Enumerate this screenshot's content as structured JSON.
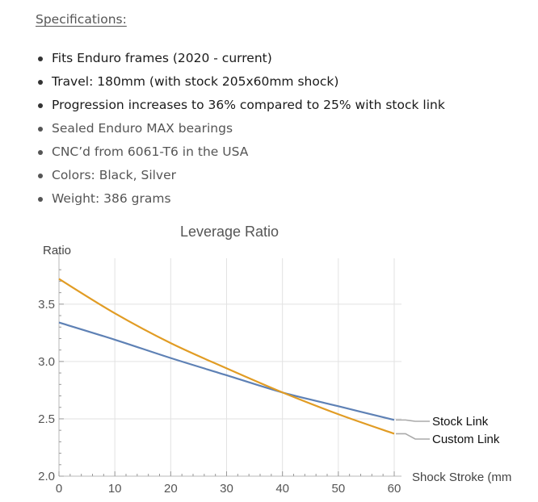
{
  "specs": {
    "title": "Specifications:",
    "items": [
      {
        "text": "Fits Enduro frames (2020 - current)"
      },
      {
        "text": "Travel: 180mm (with stock 205x60mm shock)"
      },
      {
        "text": "Progression increases to 36% compared to 25% with stock link"
      },
      {
        "text": "Sealed Enduro MAX bearings"
      },
      {
        "text": "CNC’d from 6061-T6 in the USA"
      },
      {
        "text": "Colors: Black, Silver"
      },
      {
        "text": "Weight: 386 grams"
      }
    ]
  },
  "chart_data": {
    "type": "line",
    "title": "Leverage Ratio",
    "ylabel": "Ratio",
    "xlabel": "Shock Stroke (mm",
    "xlim": [
      0,
      60
    ],
    "ylim": [
      2.0,
      3.9
    ],
    "x_ticks": [
      "0",
      "10",
      "20",
      "30",
      "40",
      "50",
      "60"
    ],
    "y_ticks": [
      "2.0",
      "2.5",
      "3.0",
      "3.5"
    ],
    "grid": true,
    "legend": "right, labels at line ends",
    "series": [
      {
        "name": "Stock Link",
        "color": "#5e81b5",
        "x": [
          0,
          10,
          20,
          30,
          40,
          50,
          60
        ],
        "y": [
          3.34,
          3.19,
          3.03,
          2.88,
          2.73,
          2.61,
          2.49
        ]
      },
      {
        "name": "Custom Link",
        "color": "#e19c24",
        "x": [
          0,
          10,
          20,
          30,
          40,
          50,
          60
        ],
        "y": [
          3.72,
          3.42,
          3.16,
          2.94,
          2.73,
          2.54,
          2.37
        ]
      }
    ]
  }
}
